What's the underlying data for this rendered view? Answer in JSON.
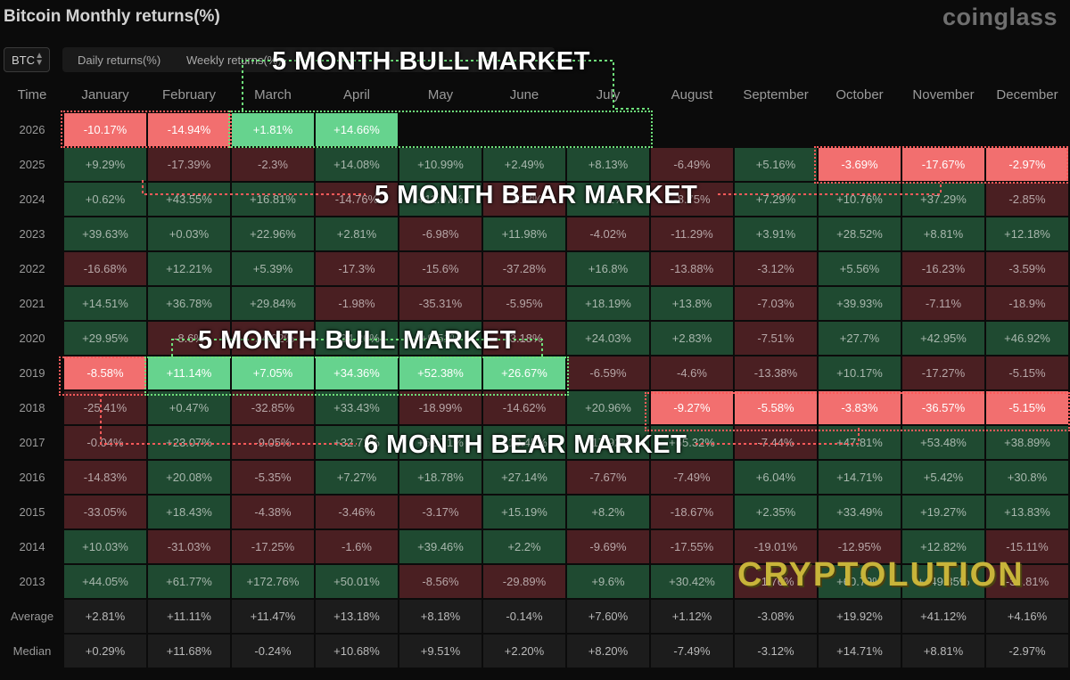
{
  "header": {
    "title": "Bitcoin Monthly returns(%)",
    "brand": "coinglass"
  },
  "toolbar": {
    "asset_value": "BTC",
    "tabs": [
      {
        "label": "Daily returns(%)"
      },
      {
        "label": "Weekly returns(%)"
      }
    ]
  },
  "table": {
    "time_header": "Time",
    "months": [
      "January",
      "February",
      "March",
      "April",
      "May",
      "June",
      "July",
      "August",
      "September",
      "October",
      "November",
      "December"
    ],
    "rows": [
      {
        "year": "2026",
        "values": [
          "-10.17%",
          "-14.94%",
          "+1.81%",
          "+14.66%",
          "",
          "",
          "",
          "",
          "",
          "",
          "",
          ""
        ]
      },
      {
        "year": "2025",
        "values": [
          "+9.29%",
          "-17.39%",
          "-2.3%",
          "+14.08%",
          "+10.99%",
          "+2.49%",
          "+8.13%",
          "-6.49%",
          "+5.16%",
          "-3.69%",
          "-17.67%",
          "-2.97%"
        ]
      },
      {
        "year": "2024",
        "values": [
          "+0.62%",
          "+43.55%",
          "+16.81%",
          "-14.76%",
          "+11.07%",
          "-7.13%",
          "+3.1%",
          "-8.75%",
          "+7.29%",
          "+10.76%",
          "+37.29%",
          "-2.85%"
        ]
      },
      {
        "year": "2023",
        "values": [
          "+39.63%",
          "+0.03%",
          "+22.96%",
          "+2.81%",
          "-6.98%",
          "+11.98%",
          "-4.02%",
          "-11.29%",
          "+3.91%",
          "+28.52%",
          "+8.81%",
          "+12.18%"
        ]
      },
      {
        "year": "2022",
        "values": [
          "-16.68%",
          "+12.21%",
          "+5.39%",
          "-17.3%",
          "-15.6%",
          "-37.28%",
          "+16.8%",
          "-13.88%",
          "-3.12%",
          "+5.56%",
          "-16.23%",
          "-3.59%"
        ]
      },
      {
        "year": "2021",
        "values": [
          "+14.51%",
          "+36.78%",
          "+29.84%",
          "-1.98%",
          "-35.31%",
          "-5.95%",
          "+18.19%",
          "+13.8%",
          "-7.03%",
          "+39.93%",
          "-7.11%",
          "-18.9%"
        ]
      },
      {
        "year": "2020",
        "values": [
          "+29.95%",
          "-8.6%",
          "-24.92%",
          "+34.26%",
          "+9.51%",
          "-3.18%",
          "+24.03%",
          "+2.83%",
          "-7.51%",
          "+27.7%",
          "+42.95%",
          "+46.92%"
        ]
      },
      {
        "year": "2019",
        "values": [
          "-8.58%",
          "+11.14%",
          "+7.05%",
          "+34.36%",
          "+52.38%",
          "+26.67%",
          "-6.59%",
          "-4.6%",
          "-13.38%",
          "+10.17%",
          "-17.27%",
          "-5.15%"
        ]
      },
      {
        "year": "2018",
        "values": [
          "-25.41%",
          "+0.47%",
          "-32.85%",
          "+33.43%",
          "-18.99%",
          "-14.62%",
          "+20.96%",
          "-9.27%",
          "-5.58%",
          "-3.83%",
          "-36.57%",
          "-5.15%"
        ]
      },
      {
        "year": "2017",
        "values": [
          "-0.04%",
          "+23.07%",
          "-9.05%",
          "+32.71%",
          "+52.71%",
          "+10.45%",
          "+17.92%",
          "+65.32%",
          "-7.44%",
          "+47.81%",
          "+53.48%",
          "+38.89%"
        ]
      },
      {
        "year": "2016",
        "values": [
          "-14.83%",
          "+20.08%",
          "-5.35%",
          "+7.27%",
          "+18.78%",
          "+27.14%",
          "-7.67%",
          "-7.49%",
          "+6.04%",
          "+14.71%",
          "+5.42%",
          "+30.8%"
        ]
      },
      {
        "year": "2015",
        "values": [
          "-33.05%",
          "+18.43%",
          "-4.38%",
          "-3.46%",
          "-3.17%",
          "+15.19%",
          "+8.2%",
          "-18.67%",
          "+2.35%",
          "+33.49%",
          "+19.27%",
          "+13.83%"
        ]
      },
      {
        "year": "2014",
        "values": [
          "+10.03%",
          "-31.03%",
          "-17.25%",
          "-1.6%",
          "+39.46%",
          "+2.2%",
          "-9.69%",
          "-17.55%",
          "-19.01%",
          "-12.95%",
          "+12.82%",
          "-15.11%"
        ]
      },
      {
        "year": "2013",
        "values": [
          "+44.05%",
          "+61.77%",
          "+172.76%",
          "+50.01%",
          "-8.56%",
          "-29.89%",
          "+9.6%",
          "+30.42%",
          "-1.76%",
          "+60.79%",
          "+449.35%",
          "-34.81%"
        ]
      }
    ],
    "stats": [
      {
        "label": "Average",
        "values": [
          "+2.81%",
          "+11.11%",
          "+11.47%",
          "+13.18%",
          "+8.18%",
          "-0.14%",
          "+7.60%",
          "+1.12%",
          "-3.08%",
          "+19.92%",
          "+41.12%",
          "+4.16%"
        ]
      },
      {
        "label": "Median",
        "values": [
          "+0.29%",
          "+11.68%",
          "-0.24%",
          "+10.68%",
          "+9.51%",
          "+2.20%",
          "+8.20%",
          "-7.49%",
          "-3.12%",
          "+14.71%",
          "+8.81%",
          "-2.97%"
        ]
      }
    ],
    "highlighted": {
      "2026": [
        0,
        1,
        2,
        3
      ],
      "2025": [
        9,
        10,
        11
      ],
      "2019": [
        0,
        1,
        2,
        3,
        4,
        5
      ],
      "2018": [
        7,
        8,
        9,
        10,
        11
      ]
    }
  },
  "annotations": {
    "bull_2026": "5 MONTH BULL MARKET",
    "bear_2025": "5 MONTH BEAR MARKET",
    "bull_2019": "5 MONTH BULL MARKET",
    "bear_2018": "6 MONTH BEAR MARKET",
    "colors": {
      "bull": "#6ee07a",
      "bear": "#ff5a5a"
    }
  },
  "watermark": "CRYPTOLUTION",
  "colors": {
    "positive_cell": "#1f4a31",
    "negative_cell": "#4a1f22",
    "positive_highlight": "#66d38e",
    "negative_highlight": "#f26f6f",
    "background": "#0b0b0b"
  }
}
